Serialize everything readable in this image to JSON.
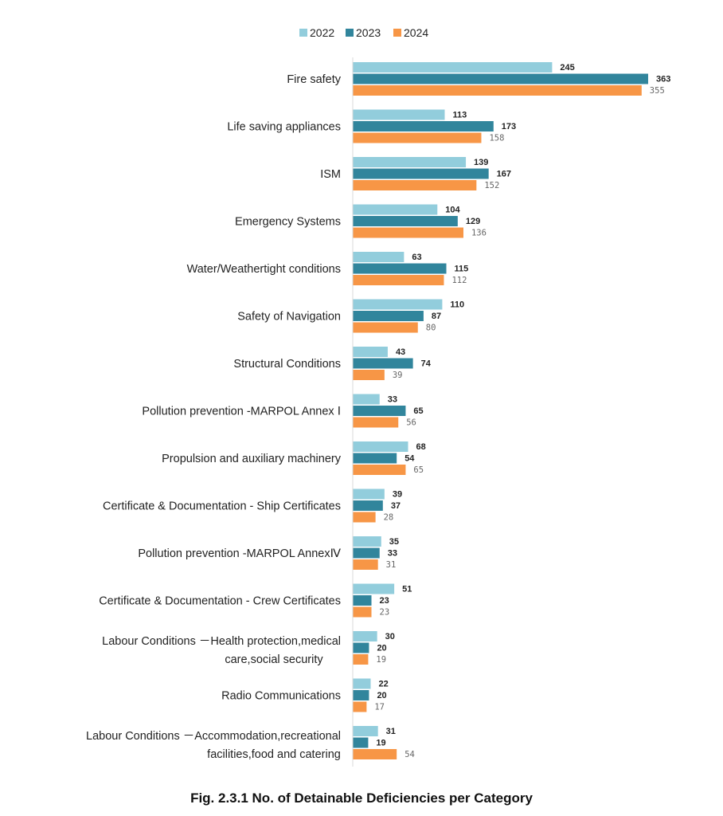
{
  "caption": "Fig. 2.3.1 No. of Detainable Deficiencies per Category",
  "chart_data": {
    "type": "bar",
    "orientation": "horizontal",
    "title": "",
    "xlabel": "",
    "ylabel": "",
    "legend_position": "top-center",
    "grid": false,
    "xlim": [
      0,
      363
    ],
    "categories": [
      [
        "Fire safety"
      ],
      [
        "Life saving appliances"
      ],
      [
        "ISM"
      ],
      [
        "Emergency Systems"
      ],
      [
        "Water/Weathertight conditions"
      ],
      [
        "Safety of Navigation"
      ],
      [
        "Structural Conditions"
      ],
      [
        "Pollution prevention -MARPOL Annex Ⅰ"
      ],
      [
        "Propulsion and auxiliary machinery"
      ],
      [
        "Certificate & Documentation - Ship Certificates"
      ],
      [
        "Pollution prevention -MARPOL AnnexⅣ"
      ],
      [
        "Certificate & Documentation - Crew Certificates"
      ],
      [
        "Labour Conditions －Health protection,medical",
        "care,social security"
      ],
      [
        "Radio Communications"
      ],
      [
        "Labour Conditions －Accommodation,recreational",
        "facilities,food and catering"
      ]
    ],
    "series": [
      {
        "name": "2022",
        "color": "#92cddc",
        "values": [
          245,
          113,
          139,
          104,
          63,
          110,
          43,
          33,
          68,
          39,
          35,
          51,
          30,
          22,
          31
        ]
      },
      {
        "name": "2023",
        "color": "#31859c",
        "values": [
          363,
          173,
          167,
          129,
          115,
          87,
          74,
          65,
          54,
          37,
          33,
          23,
          20,
          20,
          19
        ]
      },
      {
        "name": "2024",
        "color": "#f79646",
        "values": [
          355,
          158,
          152,
          136,
          112,
          80,
          39,
          56,
          65,
          28,
          31,
          23,
          19,
          17,
          54
        ]
      }
    ]
  }
}
